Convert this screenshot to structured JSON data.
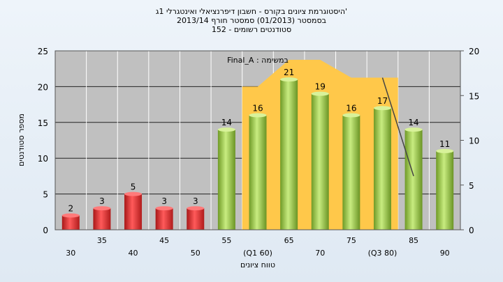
{
  "chart_data": {
    "type": "bar",
    "title_lines": [
      "היסטוגרמת ציונים בקורס - חשבון דיפרנציאלי ואינטגרלי 1ג'",
      "בסמסטר  (01/2013)  סמסטר חורף 2013/14",
      "152 - סטודנטים רשומים"
    ],
    "categories": [
      "30",
      "35",
      "40",
      "45",
      "50",
      "55",
      "(Q1 60)",
      "65",
      "70",
      "75",
      "(Q3 80)",
      "85",
      "90"
    ],
    "values": [
      2,
      3,
      5,
      3,
      3,
      14,
      16,
      21,
      19,
      16,
      17,
      14,
      11
    ],
    "bar_colors": [
      "#e03232",
      "#e03232",
      "#e03232",
      "#e03232",
      "#e03232",
      "#9ccc4a",
      "#9ccc4a",
      "#9ccc4a",
      "#9ccc4a",
      "#9ccc4a",
      "#9ccc4a",
      "#9ccc4a",
      "#9ccc4a"
    ],
    "area_overlay": {
      "color": "#ffc84a",
      "categories": [
        "(Q1 60)",
        "65",
        "70",
        "75",
        "(Q3 80)"
      ],
      "values": [
        16,
        19,
        19,
        17,
        17
      ]
    },
    "line_overlay": {
      "color": "#444444",
      "from_category": "(Q3 80)",
      "to_category": "85",
      "from_value": 17,
      "to_value": 6
    },
    "annotation": "Final_A : במשימה",
    "xlabel": "טווח ציונים",
    "ylabel": "מספר סטודנטים",
    "ylim": [
      0,
      25
    ],
    "yticks": [
      0,
      5,
      10,
      15,
      20,
      25
    ],
    "y2lim": [
      0,
      20
    ],
    "y2ticks": [
      0,
      5,
      10,
      15,
      20
    ],
    "grid": true,
    "plot_background": "#c0c0c0"
  }
}
